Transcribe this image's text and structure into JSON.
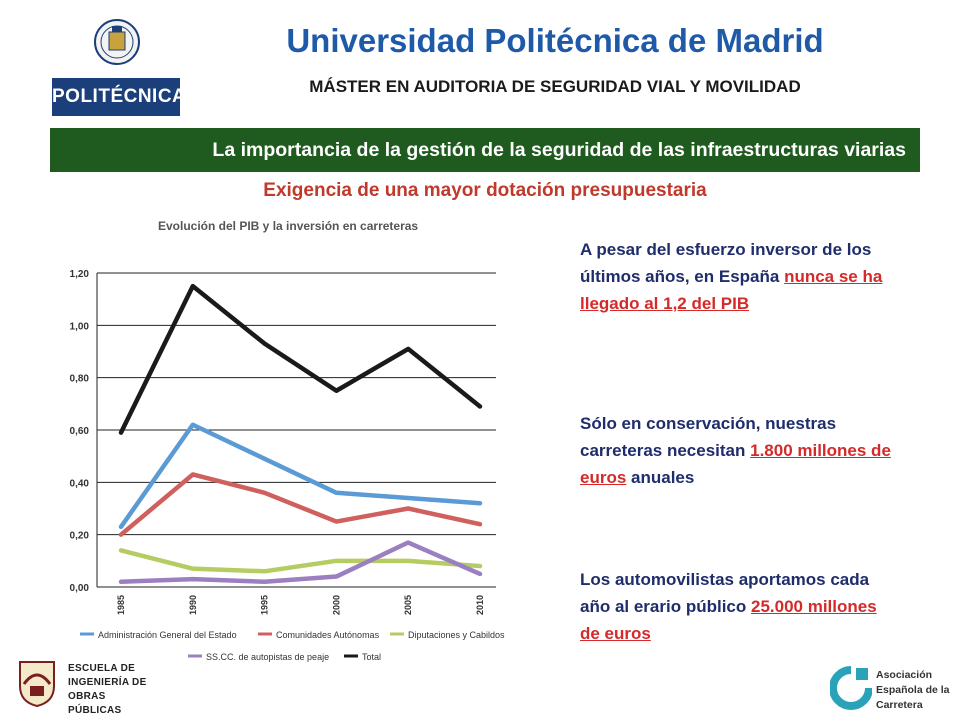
{
  "header": {
    "title": "Universidad Politécnica de Madrid",
    "subtitle": "MÁSTER EN AUDITORIA DE SEGURIDAD VIAL Y MOVILIDAD",
    "logo_text": "POLITÉCNICA"
  },
  "banner": "La importancia de la gestión de la seguridad de las infraestructuras viarias",
  "section_title": "Exigencia de una mayor dotación presupuestaria",
  "chart_data": {
    "type": "line",
    "title": "Evolución del PIB y la inversión en carreteras",
    "categories": [
      "1985",
      "1990",
      "1995",
      "2000",
      "2005",
      "2010"
    ],
    "y_tick_labels": [
      "0,00",
      "0,20",
      "0,40",
      "0,60",
      "0,80",
      "1,00",
      "1,20"
    ],
    "ylim": [
      0,
      1.2
    ],
    "grid": true,
    "legend_position": "bottom",
    "series": [
      {
        "name": "Administración General del Estado",
        "color": "#5b9bd5",
        "values": [
          0.23,
          0.62,
          0.49,
          0.36,
          0.34,
          0.32
        ]
      },
      {
        "name": "Comunidades Autónomas",
        "color": "#d0605e",
        "values": [
          0.2,
          0.43,
          0.36,
          0.25,
          0.3,
          0.24
        ]
      },
      {
        "name": "Diputaciones y Cabildos",
        "color": "#b5cc63",
        "values": [
          0.14,
          0.07,
          0.06,
          0.1,
          0.1,
          0.08
        ]
      },
      {
        "name": "SS.CC. de autopistas de peaje",
        "color": "#9b7fc0",
        "values": [
          0.02,
          0.03,
          0.02,
          0.04,
          0.17,
          0.05
        ]
      },
      {
        "name": "Total",
        "color": "#1a1a1a",
        "values": [
          0.59,
          1.15,
          0.93,
          0.75,
          0.91,
          0.69
        ]
      }
    ]
  },
  "notes": {
    "p1_text": "A pesar del esfuerzo inversor de los últimos años, en España ",
    "p1_highlight": "nunca se ha llegado al 1,2 del PIB",
    "p2_text": "Sólo en conservación, nuestras carreteras necesitan ",
    "p2_highlight": "1.800 millones de euros",
    "p2_after": " anuales",
    "p3_text": "Los automovilistas aportamos cada año al erario público ",
    "p3_highlight": "25.000 millones de euros"
  },
  "footer": {
    "left_logo_lines": [
      "ESCUELA DE",
      "INGENIERÍA DE",
      "OBRAS PÚBLICAS"
    ],
    "right_logo_lines": [
      "Asociación",
      "Española de la",
      "Carretera"
    ]
  }
}
